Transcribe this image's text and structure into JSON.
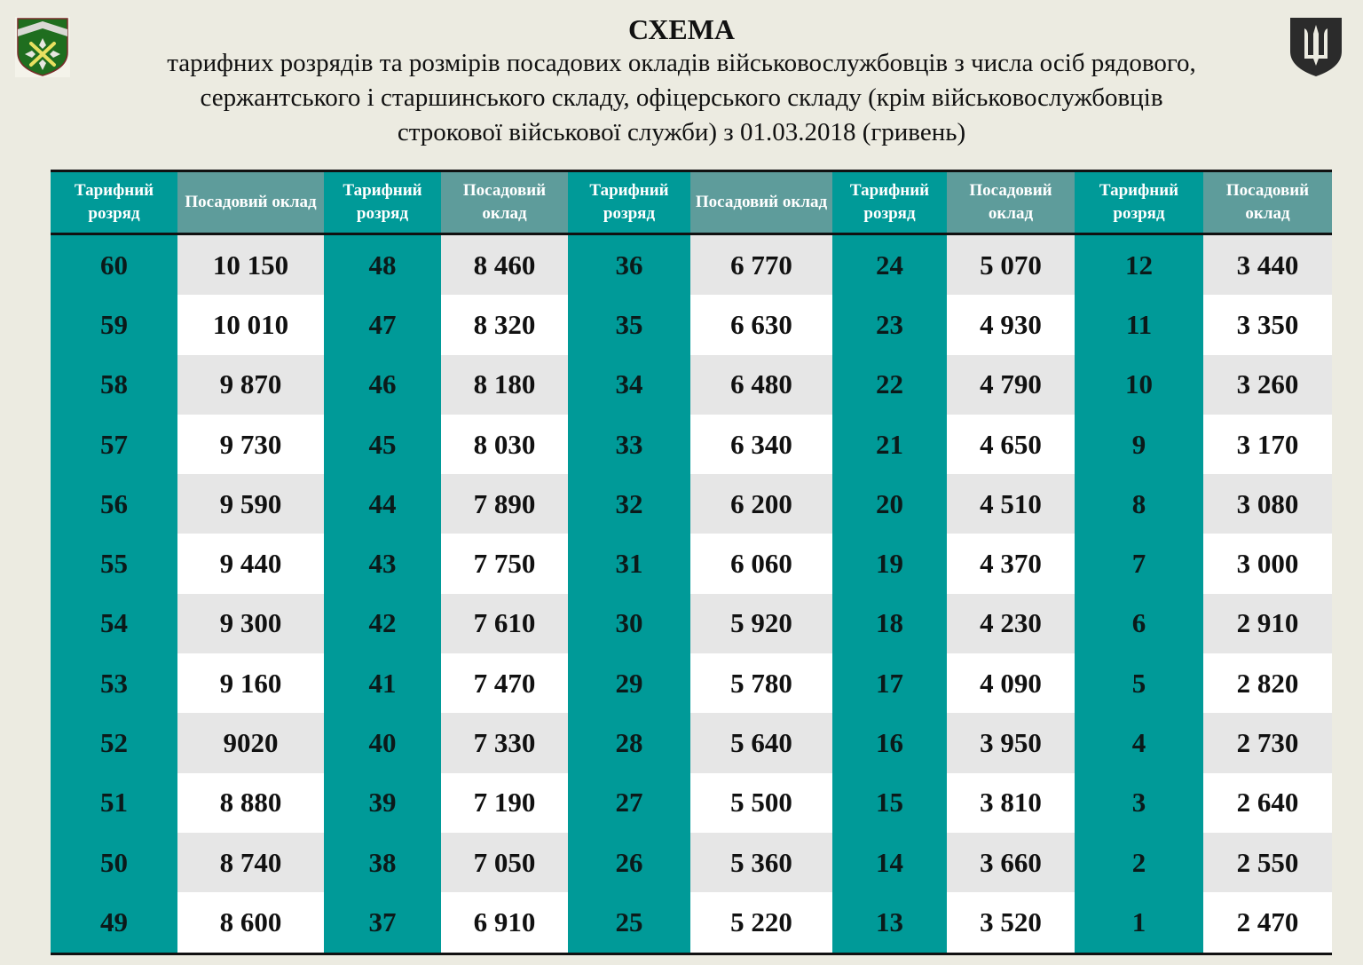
{
  "header": {
    "title": "СХЕМА",
    "subtitle": "тарифних розрядів та розмірів посадових окладів військовослужбовців з числа осіб рядового, сержантського і старшинського складу, офіцерського складу (крім військовослужбовців строкової військової служби) з 01.03.2018 (гривень)"
  },
  "colors": {
    "teal": "#009a98",
    "teal_header_muted": "#5e9c9b",
    "background": "#ecebe1"
  },
  "table": {
    "columns": [
      "Тарифний розряд",
      "Посадовий оклад",
      "Тарифний розряд",
      "Посадовий оклад",
      "Тарифний розряд",
      "Посадовий оклад",
      "Тарифний розряд",
      "Посадовий оклад",
      "Тарифний розряд",
      "Посадовий оклад"
    ],
    "rows": [
      [
        "60",
        "10 150",
        "48",
        "8 460",
        "36",
        "6 770",
        "24",
        "5 070",
        "12",
        "3 440"
      ],
      [
        "59",
        "10 010",
        "47",
        "8 320",
        "35",
        "6 630",
        "23",
        "4 930",
        "11",
        "3 350"
      ],
      [
        "58",
        "9 870",
        "46",
        "8 180",
        "34",
        "6 480",
        "22",
        "4 790",
        "10",
        "3 260"
      ],
      [
        "57",
        "9 730",
        "45",
        "8 030",
        "33",
        "6 340",
        "21",
        "4 650",
        "9",
        "3 170"
      ],
      [
        "56",
        "9 590",
        "44",
        "7 890",
        "32",
        "6 200",
        "20",
        "4 510",
        "8",
        "3 080"
      ],
      [
        "55",
        "9 440",
        "43",
        "7 750",
        "31",
        "6 060",
        "19",
        "4 370",
        "7",
        "3 000"
      ],
      [
        "54",
        "9 300",
        "42",
        "7 610",
        "30",
        "5 920",
        "18",
        "4 230",
        "6",
        "2 910"
      ],
      [
        "53",
        "9 160",
        "41",
        "7 470",
        "29",
        "5 780",
        "17",
        "4 090",
        "5",
        "2 820"
      ],
      [
        "52",
        "9020",
        "40",
        "7 330",
        "28",
        "5 640",
        "16",
        "3 950",
        "4",
        "2 730"
      ],
      [
        "51",
        "8 880",
        "39",
        "7 190",
        "27",
        "5 500",
        "15",
        "3 810",
        "3",
        "2 640"
      ],
      [
        "50",
        "8 740",
        "38",
        "7 050",
        "26",
        "5 360",
        "14",
        "3 660",
        "2",
        "2 550"
      ],
      [
        "49",
        "8 600",
        "37",
        "6 910",
        "25",
        "5 220",
        "13",
        "3 520",
        "1",
        "2 470"
      ]
    ]
  }
}
